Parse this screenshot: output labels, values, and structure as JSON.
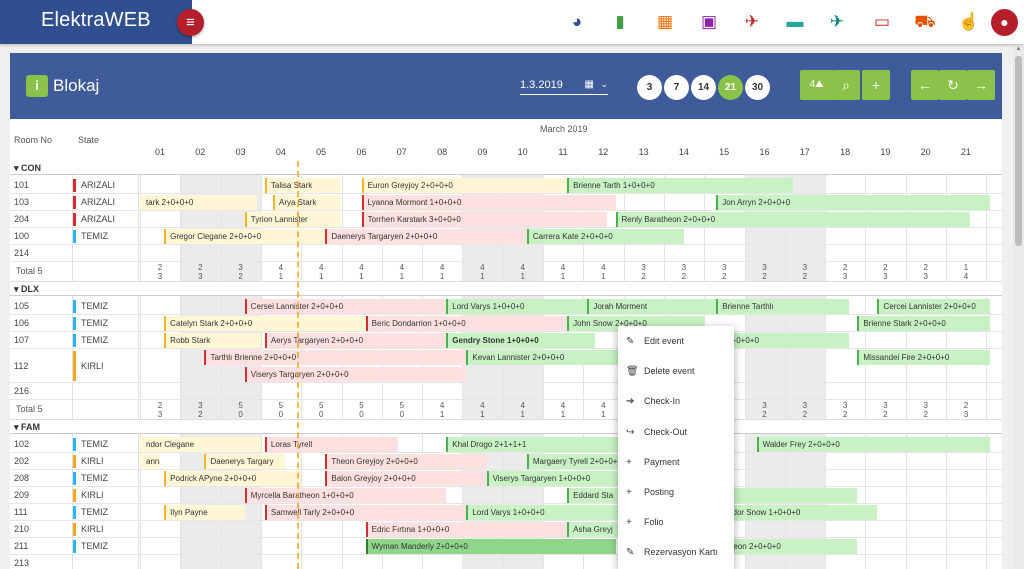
{
  "app": {
    "brand": "ElektraWEB"
  },
  "header": {
    "title": "Blokaj",
    "date": "1.3.2019",
    "ranges": [
      {
        "label": "3",
        "active": false
      },
      {
        "label": "7",
        "active": false
      },
      {
        "label": "14",
        "active": false
      },
      {
        "label": "21",
        "active": true
      },
      {
        "label": "30",
        "active": false
      }
    ],
    "rooms_btn": "4"
  },
  "top_icons": [
    {
      "name": "pie-chart-icon",
      "glyph": "◕",
      "color": "#2f4f90"
    },
    {
      "name": "bar-chart-icon",
      "glyph": "▮",
      "color": "#43a047"
    },
    {
      "name": "grid-icon",
      "glyph": "▦",
      "color": "#ef6c00"
    },
    {
      "name": "calendar-icon",
      "glyph": "▣",
      "color": "#8e24aa"
    },
    {
      "name": "plane-arrival-icon",
      "glyph": "✈",
      "color": "#c62828"
    },
    {
      "name": "bed-icon",
      "glyph": "▬",
      "color": "#26a69a"
    },
    {
      "name": "plane-departure-icon",
      "glyph": "✈",
      "color": "#00897b"
    },
    {
      "name": "card-icon",
      "glyph": "▭",
      "color": "#c62828"
    },
    {
      "name": "cart-icon",
      "glyph": "⛟",
      "color": "#e65100"
    },
    {
      "name": "hand-icon",
      "glyph": "☝",
      "color": "#ef6c00"
    }
  ],
  "grid": {
    "month": "March 2019",
    "col_room": "Room No",
    "col_state": "State",
    "days": [
      "01",
      "02",
      "03",
      "04",
      "05",
      "06",
      "07",
      "08",
      "09",
      "10",
      "11",
      "12",
      "13",
      "14",
      "15",
      "16",
      "17",
      "18",
      "19",
      "20",
      "21"
    ],
    "weekend_days": [
      2,
      3,
      9,
      10,
      16,
      17
    ]
  },
  "groups": [
    {
      "name": "CON",
      "rooms": [
        {
          "no": "101",
          "state": "ARIZALI",
          "color": "#d32f2f"
        },
        {
          "no": "103",
          "state": "ARIZALI",
          "color": "#d32f2f"
        },
        {
          "no": "204",
          "state": "ARIZALI",
          "color": "#d32f2f"
        },
        {
          "no": "100",
          "state": "TEMIZ",
          "color": "#29b6f6"
        },
        {
          "no": "214",
          "state": "",
          "color": ""
        }
      ],
      "total_label": "Total 5",
      "totals": [
        [
          "2",
          "3"
        ],
        [
          "2",
          "3"
        ],
        [
          "3",
          "2"
        ],
        [
          "4",
          "1"
        ],
        [
          "4",
          "1"
        ],
        [
          "4",
          "1"
        ],
        [
          "4",
          "1"
        ],
        [
          "4",
          "1"
        ],
        [
          "4",
          "1"
        ],
        [
          "4",
          "1"
        ],
        [
          "4",
          "1"
        ],
        [
          "4",
          "1"
        ],
        [
          "3",
          "2"
        ],
        [
          "3",
          "2"
        ],
        [
          "3",
          "2"
        ],
        [
          "3",
          "2"
        ],
        [
          "3",
          "2"
        ],
        [
          "2",
          "3"
        ],
        [
          "2",
          "3"
        ],
        [
          "2",
          "3"
        ],
        [
          "1",
          "4"
        ]
      ],
      "bars": [
        {
          "row": 0,
          "text": "Talisa Stark",
          "start": 3.1,
          "end": 5.0,
          "color": "yellow"
        },
        {
          "row": 0,
          "text": "Euron Greyjoy 2+0+0+0",
          "start": 5.5,
          "end": 10.6,
          "color": "yellow"
        },
        {
          "row": 0,
          "text": "Brienne Tarth 1+0+0+0",
          "start": 10.6,
          "end": 16.2,
          "color": "green"
        },
        {
          "row": 1,
          "text": "tark 2+0+0+0",
          "start": -0.1,
          "end": 2.9,
          "color": "yellow"
        },
        {
          "row": 1,
          "text": "Arya Stark",
          "start": 3.3,
          "end": 5.0,
          "color": "yellow"
        },
        {
          "row": 1,
          "text": "Lyanna Mormont 1+0+0+0",
          "start": 5.5,
          "end": 11.8,
          "color": "red"
        },
        {
          "row": 1,
          "text": "Jon Arryn 2+0+0+0",
          "start": 14.3,
          "end": 21.1,
          "color": "green"
        },
        {
          "row": 2,
          "text": "Tyrion Lannister",
          "start": 2.6,
          "end": 5.0,
          "color": "yellow"
        },
        {
          "row": 2,
          "text": "Torrhen Karstark 3+0+0+0",
          "start": 5.5,
          "end": 11.6,
          "color": "red"
        },
        {
          "row": 2,
          "text": "Renly Baratheon 2+0+0+0",
          "start": 11.8,
          "end": 20.6,
          "color": "green"
        },
        {
          "row": 3,
          "text": "Gregor Clegane 2+0+0+0",
          "start": 0.6,
          "end": 4.6,
          "color": "yellow"
        },
        {
          "row": 3,
          "text": "Daenerys Targaryen 2+0+0+0",
          "start": 4.6,
          "end": 9.6,
          "color": "red"
        },
        {
          "row": 3,
          "text": "Carrera Kate 2+0+0+0",
          "start": 9.6,
          "end": 13.5,
          "color": "green"
        }
      ]
    },
    {
      "name": "DLX",
      "rooms": [
        {
          "no": "105",
          "state": "TEMIZ",
          "color": "#29b6f6"
        },
        {
          "no": "106",
          "state": "TEMIZ",
          "color": "#29b6f6"
        },
        {
          "no": "107",
          "state": "TEMIZ",
          "color": "#29b6f6"
        },
        {
          "no": "112",
          "state": "KIRLI",
          "color": "#f5a623",
          "tall": true
        },
        {
          "no": "216",
          "state": "",
          "color": ""
        }
      ],
      "total_label": "Total 5",
      "totals": [
        [
          "2",
          "3"
        ],
        [
          "3",
          "2"
        ],
        [
          "5",
          "0"
        ],
        [
          "5",
          "0"
        ],
        [
          "5",
          "0"
        ],
        [
          "5",
          "0"
        ],
        [
          "5",
          "0"
        ],
        [
          "4",
          "1"
        ],
        [
          "4",
          "1"
        ],
        [
          "4",
          "1"
        ],
        [
          "4",
          "1"
        ],
        [
          "4",
          "1"
        ],
        [
          "",
          ""
        ],
        [
          "",
          ""
        ],
        [
          "",
          ""
        ],
        [
          "3",
          "2"
        ],
        [
          "3",
          "2"
        ],
        [
          "3",
          "2"
        ],
        [
          "3",
          "2"
        ],
        [
          "3",
          "2"
        ],
        [
          "2",
          "3"
        ]
      ],
      "bars": [
        {
          "row": 0,
          "text": "Cersei Lannister 2+0+0+0",
          "start": 2.6,
          "end": 7.6,
          "color": "red"
        },
        {
          "row": 0,
          "text": "Lord Varys 1+0+0+0",
          "start": 7.6,
          "end": 11.1,
          "color": "green"
        },
        {
          "row": 0,
          "text": "Jorah Morment",
          "start": 11.1,
          "end": 14.3,
          "color": "green"
        },
        {
          "row": 0,
          "text": "Brienne Tarthlı",
          "start": 14.3,
          "end": 17.6,
          "color": "green"
        },
        {
          "row": 0,
          "text": "Cercei Lannister 2+0+0+0",
          "start": 18.3,
          "end": 21.1,
          "color": "green"
        },
        {
          "row": 1,
          "text": "Catelyn Stark 2+0+0+0",
          "start": 0.6,
          "end": 5.6,
          "color": "yellow"
        },
        {
          "row": 1,
          "text": "Beric Dondarrion 1+0+0+0",
          "start": 5.6,
          "end": 10.6,
          "color": "red"
        },
        {
          "row": 1,
          "text": "John Snow 2+0+0+0",
          "start": 10.6,
          "end": 14.0,
          "color": "green"
        },
        {
          "row": 1,
          "text": "Brienne Stark 2+0+0+0",
          "start": 17.8,
          "end": 21.1,
          "color": "green"
        },
        {
          "row": 2,
          "text": "Robb Stark",
          "start": 0.6,
          "end": 3.0,
          "color": "yellow"
        },
        {
          "row": 2,
          "text": "Aerys Targaryen 2+0+0+0",
          "start": 3.1,
          "end": 7.6,
          "color": "red"
        },
        {
          "row": 2,
          "text": "Gendry Stone 1+0+0+0",
          "start": 7.6,
          "end": 11.3,
          "color": "green",
          "bold": true
        },
        {
          "row": 2,
          "text": "rell 2+0+0+0",
          "start": 14.1,
          "end": 17.6,
          "color": "green"
        },
        {
          "row": 3,
          "text": "Tarthlı Brienne 2+0+0+0",
          "start": 1.6,
          "end": 8.1,
          "color": "red",
          "sub": 0
        },
        {
          "row": 3,
          "text": "Kevan Lannister 2+0+0+0",
          "start": 8.1,
          "end": 14.3,
          "color": "green",
          "sub": 0
        },
        {
          "row": 3,
          "text": "Missandei Fire 2+0+0+0",
          "start": 17.8,
          "end": 21.1,
          "color": "green",
          "sub": 0
        },
        {
          "row": 3,
          "text": "Viserys Targaryen 2+0+0+0",
          "start": 2.6,
          "end": 8.1,
          "color": "red",
          "sub": 1
        }
      ]
    },
    {
      "name": "FAM",
      "rooms": [
        {
          "no": "102",
          "state": "TEMIZ",
          "color": "#29b6f6"
        },
        {
          "no": "202",
          "state": "KIRLI",
          "color": "#f5a623"
        },
        {
          "no": "208",
          "state": "TEMIZ",
          "color": "#29b6f6"
        },
        {
          "no": "209",
          "state": "KIRLI",
          "color": "#f5a623"
        },
        {
          "no": "111",
          "state": "TEMIZ",
          "color": "#29b6f6"
        },
        {
          "no": "210",
          "state": "KIRLI",
          "color": "#f5a623"
        },
        {
          "no": "211",
          "state": "TEMIZ",
          "color": "#29b6f6"
        },
        {
          "no": "213",
          "state": "",
          "color": ""
        }
      ],
      "bars": [
        {
          "row": 0,
          "text": "ndor Clegane",
          "start": -0.1,
          "end": 3.0,
          "color": "yellow"
        },
        {
          "row": 0,
          "text": "Loras Tyrell",
          "start": 3.1,
          "end": 6.4,
          "color": "red"
        },
        {
          "row": 0,
          "text": "Khal Drogo 2+1+1+1",
          "start": 7.6,
          "end": 12.3,
          "color": "green"
        },
        {
          "row": 0,
          "text": "Walder Frey 2+0+0+0",
          "start": 15.3,
          "end": 21.1,
          "color": "green"
        },
        {
          "row": 1,
          "text": "anna",
          "start": -0.1,
          "end": 0.5,
          "color": "yellow"
        },
        {
          "row": 1,
          "text": "Daenerys Targary",
          "start": 1.6,
          "end": 3.6,
          "color": "yellow"
        },
        {
          "row": 1,
          "text": "Theon Greyjoy 2+0+0+0",
          "start": 4.6,
          "end": 8.6,
          "color": "red"
        },
        {
          "row": 1,
          "text": "Margaery Tyrell 2+0+0+0",
          "start": 9.6,
          "end": 14.3,
          "color": "green"
        },
        {
          "row": 2,
          "text": "Podrick APyne 2+0+0+0",
          "start": 0.6,
          "end": 4.0,
          "color": "yellow"
        },
        {
          "row": 2,
          "text": "Balon Greyjoy 2+0+0+0",
          "start": 4.6,
          "end": 8.6,
          "color": "red"
        },
        {
          "row": 2,
          "text": "Viserys Targaryen 1+0+0+0",
          "start": 8.6,
          "end": 12.3,
          "color": "green"
        },
        {
          "row": 3,
          "text": "Myrcella Baratheon 1+0+0+0",
          "start": 2.6,
          "end": 7.6,
          "color": "red"
        },
        {
          "row": 3,
          "text": "Eddard Sta",
          "start": 10.6,
          "end": 12.0,
          "color": "green"
        },
        {
          "row": 3,
          "text": "",
          "start": 14.3,
          "end": 17.8,
          "color": "green"
        },
        {
          "row": 4,
          "text": "Ilyn Payne",
          "start": 0.6,
          "end": 2.6,
          "color": "yellow"
        },
        {
          "row": 4,
          "text": "Samwell Tarly 2+0+0+0",
          "start": 3.1,
          "end": 8.1,
          "color": "red"
        },
        {
          "row": 4,
          "text": "Lord Varys 1+0+0+0",
          "start": 8.1,
          "end": 12.3,
          "color": "green"
        },
        {
          "row": 4,
          "text": "Hodor Snow 1+0+0+0",
          "start": 14.3,
          "end": 18.3,
          "color": "green"
        },
        {
          "row": 5,
          "text": "Edric Fırtına 1+0+0+0",
          "start": 5.6,
          "end": 10.6,
          "color": "red"
        },
        {
          "row": 5,
          "text": "Asha Greyj",
          "start": 10.6,
          "end": 12.0,
          "color": "green"
        },
        {
          "row": 6,
          "text": "Wyman Manderly 2+0+0+0",
          "start": 5.6,
          "end": 11.8,
          "color": "dgreen"
        },
        {
          "row": 6,
          "text": "atheon 2+0+0+0",
          "start": 14.3,
          "end": 17.8,
          "color": "green"
        }
      ]
    }
  ],
  "context_menu": [
    {
      "label": "Edit event",
      "icon": "✎",
      "name": "edit-icon"
    },
    {
      "label": "Delete event",
      "icon": "🗑",
      "name": "trash-icon"
    },
    {
      "label": "Check-In",
      "icon": "➔",
      "name": "check-in-icon"
    },
    {
      "label": "Check-Out",
      "icon": "↪",
      "name": "check-out-icon"
    },
    {
      "label": "Payment",
      "icon": "+",
      "name": "plus-icon"
    },
    {
      "label": "Posting",
      "icon": "+",
      "name": "plus-icon"
    },
    {
      "label": "Folio",
      "icon": "+",
      "name": "plus-icon"
    },
    {
      "label": "Rezervasyon Kartı",
      "icon": "✎",
      "name": "card-edit-icon"
    }
  ]
}
